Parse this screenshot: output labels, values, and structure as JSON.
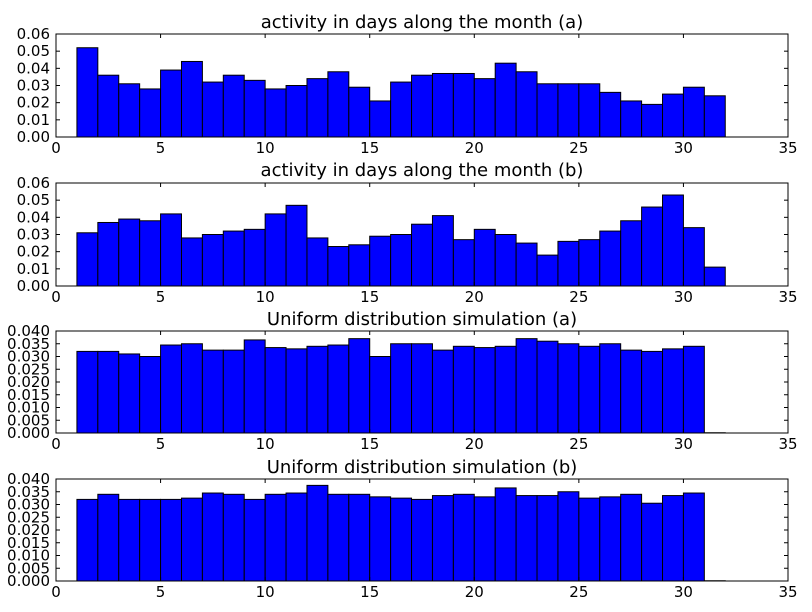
{
  "chart_data": [
    {
      "type": "bar",
      "title": "activity in days along the month (a)",
      "xlabel": "",
      "ylabel": "",
      "xlim": [
        0,
        35
      ],
      "ylim": [
        0,
        0.06
      ],
      "xticks": [
        "0",
        "5",
        "10",
        "15",
        "20",
        "25",
        "30",
        "35"
      ],
      "yticks": [
        "0.00",
        "0.01",
        "0.02",
        "0.03",
        "0.04",
        "0.05",
        "0.06"
      ],
      "bins": {
        "start": 1,
        "width": 1
      },
      "values": [
        0.052,
        0.036,
        0.031,
        0.028,
        0.039,
        0.044,
        0.032,
        0.036,
        0.033,
        0.028,
        0.03,
        0.034,
        0.038,
        0.029,
        0.021,
        0.032,
        0.036,
        0.037,
        0.037,
        0.034,
        0.043,
        0.038,
        0.031,
        0.031,
        0.031,
        0.026,
        0.021,
        0.019,
        0.025,
        0.029,
        0.024
      ],
      "grid": false,
      "color": "#0000ff"
    },
    {
      "type": "bar",
      "title": "activity in days along the month (b)",
      "xlabel": "",
      "ylabel": "",
      "xlim": [
        0,
        35
      ],
      "ylim": [
        0,
        0.06
      ],
      "xticks": [
        "0",
        "5",
        "10",
        "15",
        "20",
        "25",
        "30",
        "35"
      ],
      "yticks": [
        "0.00",
        "0.01",
        "0.02",
        "0.03",
        "0.04",
        "0.05",
        "0.06"
      ],
      "bins": {
        "start": 1,
        "width": 1
      },
      "values": [
        0.031,
        0.037,
        0.039,
        0.038,
        0.042,
        0.028,
        0.03,
        0.032,
        0.033,
        0.042,
        0.047,
        0.028,
        0.023,
        0.024,
        0.029,
        0.03,
        0.036,
        0.041,
        0.027,
        0.033,
        0.03,
        0.025,
        0.018,
        0.026,
        0.027,
        0.032,
        0.038,
        0.046,
        0.053,
        0.034,
        0.011
      ],
      "grid": false,
      "color": "#0000ff"
    },
    {
      "type": "bar",
      "title": "Uniform distribution simulation (a)",
      "xlabel": "",
      "ylabel": "",
      "xlim": [
        0,
        35
      ],
      "ylim": [
        0,
        0.04
      ],
      "xticks": [
        "0",
        "5",
        "10",
        "15",
        "20",
        "25",
        "30",
        "35"
      ],
      "yticks": [
        "0.000",
        "0.005",
        "0.010",
        "0.015",
        "0.020",
        "0.025",
        "0.030",
        "0.035",
        "0.040"
      ],
      "bins": {
        "start": 1,
        "width": 1
      },
      "values": [
        0.032,
        0.032,
        0.031,
        0.03,
        0.0345,
        0.035,
        0.0325,
        0.0325,
        0.0365,
        0.0335,
        0.033,
        0.034,
        0.0345,
        0.037,
        0.03,
        0.035,
        0.035,
        0.0325,
        0.034,
        0.0335,
        0.034,
        0.037,
        0.036,
        0.035,
        0.034,
        0.035,
        0.0325,
        0.032,
        0.033,
        0.034,
        0.0001
      ],
      "grid": false,
      "color": "#0000ff"
    },
    {
      "type": "bar",
      "title": "Uniform distribution simulation (b)",
      "xlabel": "",
      "ylabel": "",
      "xlim": [
        0,
        35
      ],
      "ylim": [
        0,
        0.04
      ],
      "xticks": [
        "0",
        "5",
        "10",
        "15",
        "20",
        "25",
        "30",
        "35"
      ],
      "yticks": [
        "0.000",
        "0.005",
        "0.010",
        "0.015",
        "0.020",
        "0.025",
        "0.030",
        "0.035",
        "0.040"
      ],
      "bins": {
        "start": 1,
        "width": 1
      },
      "values": [
        0.032,
        0.034,
        0.032,
        0.032,
        0.032,
        0.0325,
        0.0345,
        0.034,
        0.032,
        0.034,
        0.0345,
        0.0375,
        0.034,
        0.034,
        0.033,
        0.0325,
        0.032,
        0.0335,
        0.034,
        0.033,
        0.0365,
        0.0335,
        0.0335,
        0.035,
        0.0325,
        0.033,
        0.034,
        0.0305,
        0.0335,
        0.0345,
        0.0001
      ],
      "grid": false,
      "color": "#0000ff"
    }
  ]
}
